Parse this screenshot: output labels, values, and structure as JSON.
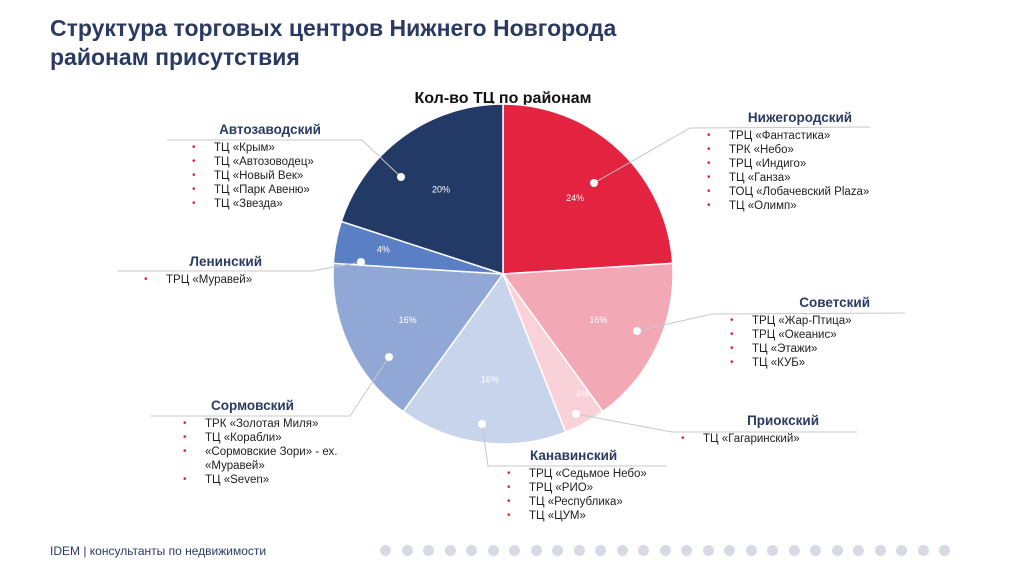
{
  "title_line1": "Структура торговых центров Нижнего Новгорода",
  "title_line2": "районам присутствия",
  "chart_data": {
    "type": "pie",
    "title": "Кол-во ТЦ по районам",
    "slices": [
      {
        "name": "Нижегородский",
        "value": 24,
        "label": "24%",
        "color": "#E3233F"
      },
      {
        "name": "Советский",
        "value": 16,
        "label": "16%",
        "color": "#F3A8B5"
      },
      {
        "name": "Приокский",
        "value": 4,
        "label": "4%",
        "color": "#F9D1D8"
      },
      {
        "name": "Канавинский",
        "value": 16,
        "label": "16%",
        "color": "#C8D4EB"
      },
      {
        "name": "Сормовский",
        "value": 16,
        "label": "16%",
        "color": "#91A8D7"
      },
      {
        "name": "Ленинский",
        "value": 4,
        "label": "4%",
        "color": "#5A7FC5"
      },
      {
        "name": "Автозаводский",
        "value": 20,
        "label": "20%",
        "color": "#243A66"
      }
    ]
  },
  "districts": {
    "nizh": {
      "name": "Нижегородский",
      "items": [
        "ТРЦ «Фантастика»",
        "ТРК «Небо»",
        "ТРЦ «Индиго»",
        "ТЦ «Ганза»",
        "ТОЦ «Лобачевский Plaza»",
        "ТЦ «Олимп»"
      ]
    },
    "avto": {
      "name": "Автозаводский",
      "items": [
        "ТЦ «Крым»",
        "ТЦ «Автозоводец»",
        "ТЦ «Новый Век»",
        "ТЦ «Парк Авеню»",
        "ТЦ «Звезда»"
      ]
    },
    "lenin": {
      "name": "Ленинский",
      "items": [
        "ТРЦ «Муравей»"
      ]
    },
    "sov": {
      "name": "Советский",
      "items": [
        "ТРЦ «Жар-Птица»",
        "ТРЦ «Океанис»",
        "ТЦ «Этажи»",
        "ТЦ «КУБ»"
      ]
    },
    "sorm": {
      "name": "Сормовский",
      "items": [
        "ТРК «Золотая Миля»",
        "ТЦ «Корабли»",
        "«Сормовские Зори» - ех. «Муравей»",
        "ТЦ «Seven»"
      ]
    },
    "priok": {
      "name": "Приокский",
      "items": [
        "ТЦ «Гагаринский»"
      ]
    },
    "kanav": {
      "name": "Канавинский",
      "items": [
        "ТРЦ «Седьмое Небо»",
        "ТРЦ «РИО»",
        "ТЦ «Республика»",
        "ТЦ «ЦУМ»"
      ]
    }
  },
  "footer": "IDEM | консультанты по недвижимости"
}
